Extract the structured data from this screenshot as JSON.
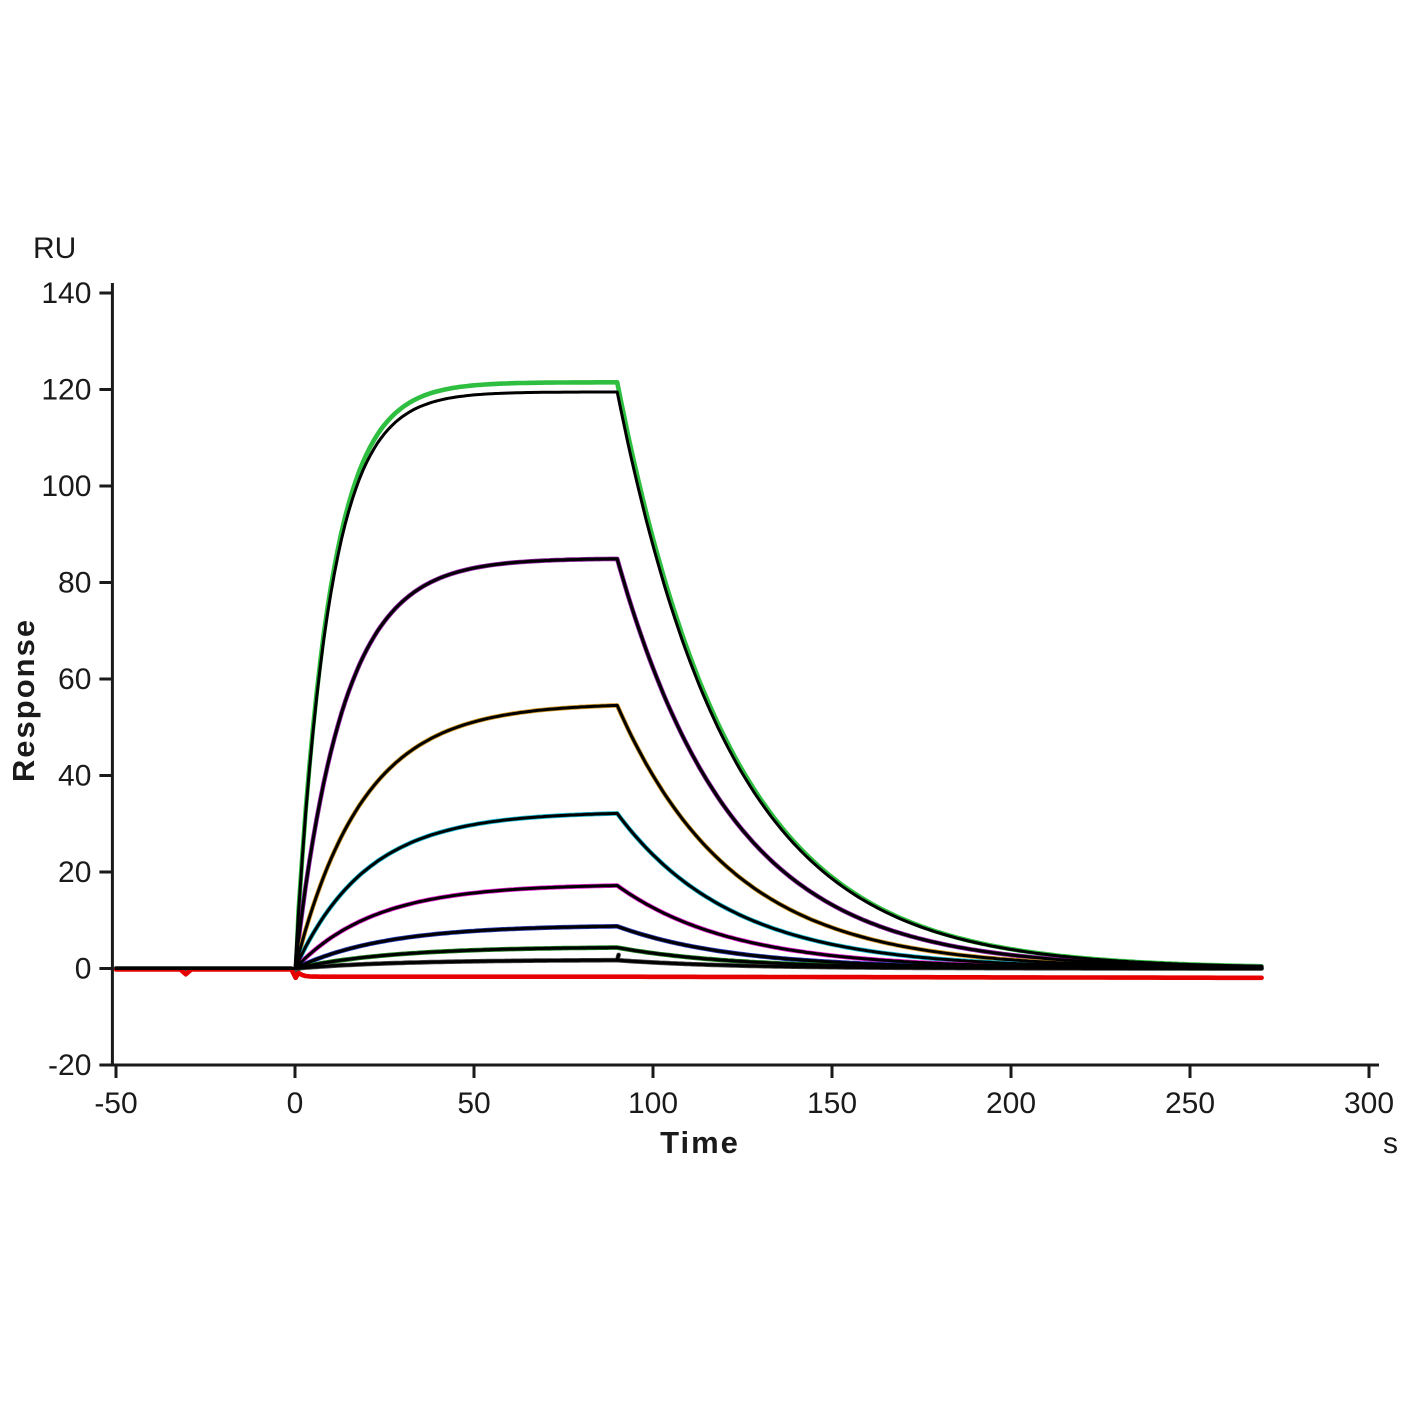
{
  "chart_data": {
    "type": "line",
    "title": "",
    "xlabel": "Time",
    "x_unit": "s",
    "ylabel": "Response",
    "y_unit": "RU",
    "xlim": [
      -50,
      300
    ],
    "ylim": [
      -20,
      140
    ],
    "x_ticks": [
      -50,
      0,
      50,
      100,
      150,
      200,
      250,
      300
    ],
    "y_ticks": [
      -20,
      0,
      20,
      40,
      60,
      80,
      100,
      120,
      140
    ],
    "grid": false,
    "legend": "none",
    "background": "#ffffff",
    "axis_color": "#1a1a1a",
    "fit_color": "#000000",
    "model": {
      "baseline_start": -50,
      "assoc_start": 0,
      "dissoc_start": 90,
      "end": 270,
      "k_diss": 0.031
    },
    "series": [
      {
        "name": "green",
        "color": "#2fbf40",
        "plateau_ru": 121.5,
        "r_eq": 121.5,
        "fit_r_eq": 119.5,
        "k_obs": 0.105,
        "fit": true
      },
      {
        "name": "purple",
        "color": "#8b1d9e",
        "plateau_ru": 85,
        "r_eq": 85,
        "k_obs": 0.075,
        "fit": true
      },
      {
        "name": "orange",
        "color": "#d29a2a",
        "plateau_ru": 55,
        "r_eq": 55,
        "k_obs": 0.053,
        "fit": true
      },
      {
        "name": "cyan",
        "color": "#17b9d0",
        "plateau_ru": 32.5,
        "r_eq": 32.5,
        "k_obs": 0.05,
        "fit": true
      },
      {
        "name": "magenta",
        "color": "#e41fd0",
        "plateau_ru": 17.5,
        "r_eq": 17.5,
        "k_obs": 0.045,
        "fit": true
      },
      {
        "name": "blue",
        "color": "#2436ad",
        "plateau_ru": 9,
        "r_eq": 9,
        "k_obs": 0.04,
        "fit": true
      },
      {
        "name": "dark-green",
        "color": "#1c7a1c",
        "plateau_ru": 4.5,
        "r_eq": 4.5,
        "k_obs": 0.037,
        "fit": true
      },
      {
        "name": "dark-gray",
        "color": "#474747",
        "plateau_ru": 1.8,
        "r_eq": 1.8,
        "k_obs": 0.035,
        "fit": true,
        "spike": 1.1
      },
      {
        "name": "red-reference",
        "color": "#e60000",
        "plateau_ru": -1.7,
        "r_eq": -1.7,
        "k_obs": 0.8,
        "fit": false,
        "flat_dissoc": true,
        "baseline_blip": true
      }
    ]
  }
}
